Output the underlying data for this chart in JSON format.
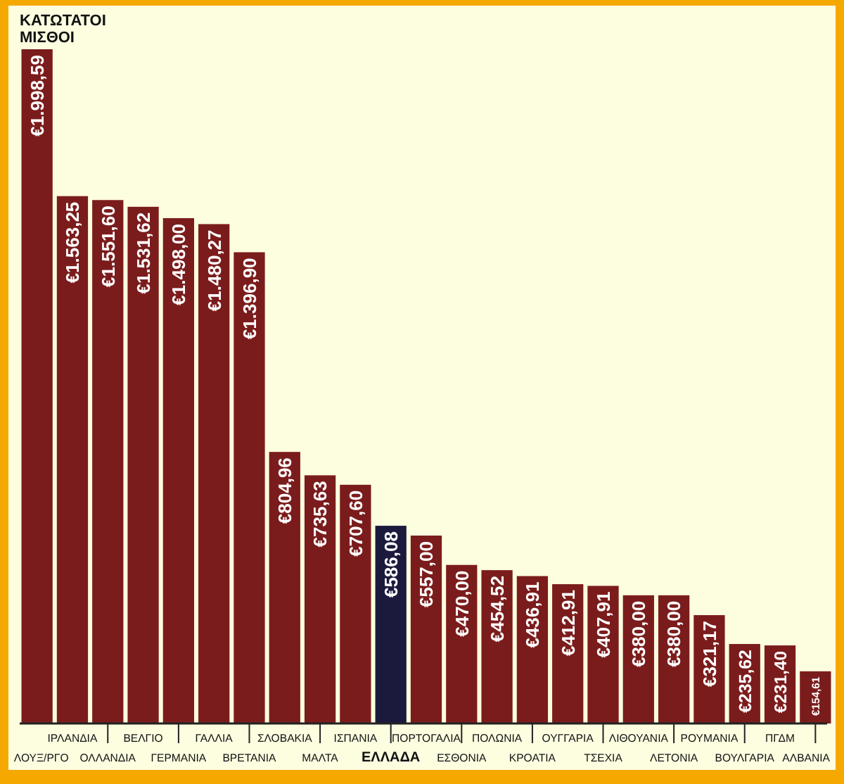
{
  "chart_data": {
    "type": "bar",
    "title": "ΚΑΤΩΤΑΤΟΙ ΜΙΣΘΟΙ",
    "categories": [
      "ΛΟΥΞ/ΡΓΟ",
      "ΙΡΛΑΝΔΙΑ",
      "ΟΛΛΑΝΔΙΑ",
      "ΒΕΛΓΙΟ",
      "ΓΕΡΜΑΝΙΑ",
      "ΓΑΛΛΙΑ",
      "ΒΡΕΤΑΝΙΑ",
      "ΣΛΟΒΑΚΙΑ",
      "ΜΑΛΤΑ",
      "ΙΣΠΑΝΙΑ",
      "ΕΛΛΑΔΑ",
      "ΠΟΡΤΟΓΑΛΙΑ",
      "ΕΣΘΟΝΙΑ",
      "ΠΟΛΩΝΙΑ",
      "ΚΡΟΑΤΙΑ",
      "ΟΥΓΓΑΡΙΑ",
      "ΤΣΕΧΙΑ",
      "ΛΙΘΟΥΑΝΙΑ",
      "ΛΕΤΟΝΙΑ",
      "ΡΟΥΜΑΝΙΑ",
      "ΒΟΥΛΓΑΡΙΑ",
      "ΠΓΔΜ",
      "ΑΛΒΑΝΙΑ"
    ],
    "values": [
      1998.59,
      1563.25,
      1551.6,
      1531.62,
      1498.0,
      1480.27,
      1396.9,
      804.96,
      735.63,
      707.6,
      586.08,
      557.0,
      470.0,
      454.52,
      436.91,
      412.91,
      407.91,
      380.0,
      380.0,
      321.17,
      235.62,
      231.4,
      154.61
    ],
    "value_labels": [
      "€1.998,59",
      "€1.563,25",
      "€1.551,60",
      "€1.531,62",
      "€1.498,00",
      "€1.480,27",
      "€1.396,90",
      "€804,96",
      "€735,63",
      "€707,60",
      "€586,08",
      "€557,00",
      "€470,00",
      "€454,52",
      "€436,91",
      "€412,91",
      "€407,91",
      "€380,00",
      "€380,00",
      "€321,17",
      "€235,62",
      "€231,40",
      "€154,61"
    ],
    "colors": [
      "#7b1c1c",
      "#7b1c1c",
      "#7b1c1c",
      "#7b1c1c",
      "#7b1c1c",
      "#7b1c1c",
      "#7b1c1c",
      "#7b1c1c",
      "#7b1c1c",
      "#7b1c1c",
      "#1c1a3c",
      "#7b1c1c",
      "#7b1c1c",
      "#7b1c1c",
      "#7b1c1c",
      "#7b1c1c",
      "#7b1c1c",
      "#7b1c1c",
      "#7b1c1c",
      "#7b1c1c",
      "#7b1c1c",
      "#7b1c1c",
      "#7b1c1c"
    ]
  }
}
